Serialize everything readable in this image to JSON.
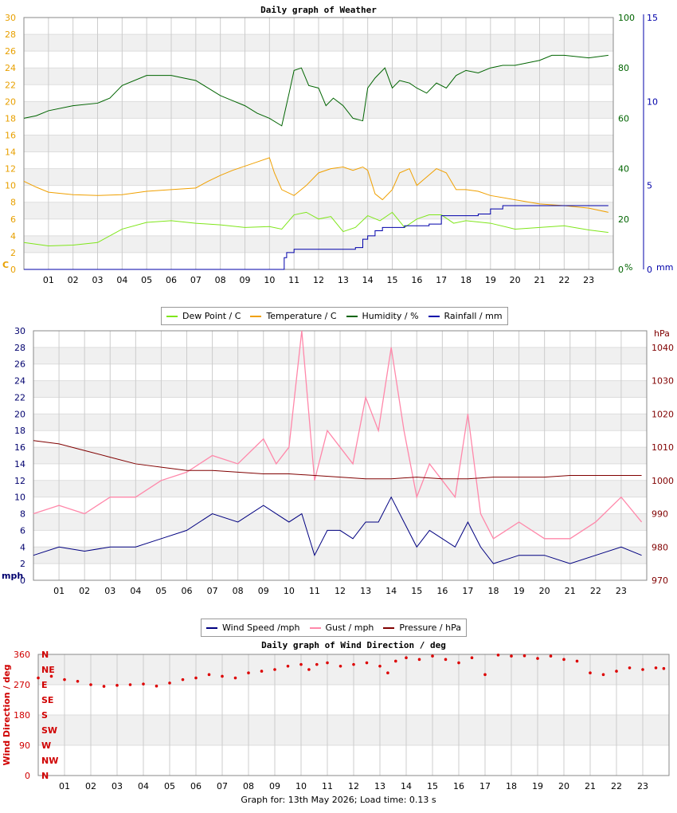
{
  "chart_data": [
    {
      "type": "line",
      "title": "Daily graph of Weather",
      "x_ticks": [
        "01",
        "02",
        "03",
        "04",
        "05",
        "06",
        "07",
        "08",
        "09",
        "10",
        "11",
        "12",
        "13",
        "14",
        "15",
        "16",
        "17",
        "18",
        "19",
        "20",
        "21",
        "22",
        "23"
      ],
      "x_range_hours": [
        0,
        24
      ],
      "grid": true,
      "left_axis": {
        "label": "C",
        "range": [
          0,
          30
        ],
        "ticks": [
          "0",
          "2",
          "4",
          "6",
          "8",
          "10",
          "12",
          "14",
          "16",
          "18",
          "20",
          "22",
          "24",
          "26",
          "28",
          "30"
        ],
        "color": "#e8a000"
      },
      "right_axis_1": {
        "label": "%",
        "range": [
          0,
          100
        ],
        "ticks": [
          "0",
          "20",
          "40",
          "60",
          "80",
          "100"
        ],
        "color": "#006400"
      },
      "right_axis_2": {
        "label": "mm",
        "range": [
          0,
          15
        ],
        "ticks": [
          "0",
          "5",
          "10",
          "15"
        ],
        "color": "#0000aa"
      },
      "legend_position": "bottom",
      "series": [
        {
          "name": "Dew Point / C",
          "color": "#7fe61a",
          "axis": "left",
          "x": [
            0,
            1,
            2,
            3,
            4,
            5,
            6,
            7,
            8,
            9,
            10,
            10.5,
            11,
            11.5,
            12,
            12.5,
            13,
            13.5,
            14,
            14.5,
            15,
            15.5,
            16,
            16.5,
            17,
            17.5,
            18,
            19,
            20,
            21,
            22,
            23,
            23.8
          ],
          "y": [
            3.2,
            2.8,
            2.9,
            3.2,
            4.8,
            5.6,
            5.8,
            5.5,
            5.3,
            5.0,
            5.1,
            4.8,
            6.5,
            6.8,
            6.0,
            6.3,
            4.5,
            5.0,
            6.4,
            5.8,
            6.8,
            5.0,
            6.0,
            6.5,
            6.5,
            5.5,
            5.8,
            5.5,
            4.8,
            5.0,
            5.2,
            4.7,
            4.4
          ]
        },
        {
          "name": "Temperature / C",
          "color": "#f0a000",
          "axis": "left",
          "x": [
            0,
            0.5,
            1,
            2,
            3,
            4,
            5,
            6,
            7,
            7.5,
            8,
            8.5,
            9,
            9.5,
            10,
            10.2,
            10.5,
            11,
            11.5,
            12,
            12.5,
            13,
            13.4,
            13.8,
            14,
            14.3,
            14.6,
            15,
            15.3,
            15.7,
            16,
            16.4,
            16.8,
            17.2,
            17.6,
            18,
            18.5,
            19,
            20,
            21,
            22,
            23,
            23.8
          ],
          "y": [
            10.5,
            9.8,
            9.2,
            8.9,
            8.8,
            8.9,
            9.3,
            9.5,
            9.7,
            10.5,
            11.2,
            11.8,
            12.3,
            12.8,
            13.3,
            11.5,
            9.5,
            8.8,
            10.0,
            11.5,
            12.0,
            12.2,
            11.8,
            12.2,
            11.8,
            9.0,
            8.3,
            9.5,
            11.5,
            12.0,
            10.0,
            11.0,
            12.0,
            11.5,
            9.5,
            9.5,
            9.3,
            8.8,
            8.3,
            7.8,
            7.6,
            7.3,
            6.8
          ]
        },
        {
          "name": "Humidity / %",
          "color": "#006400",
          "axis": "right_1",
          "x": [
            0,
            0.5,
            1,
            2,
            3,
            3.5,
            4,
            5,
            6,
            6.5,
            7,
            7.5,
            8,
            8.5,
            9,
            9.5,
            10,
            10.5,
            10.8,
            11,
            11.3,
            11.6,
            12,
            12.3,
            12.6,
            13,
            13.4,
            13.8,
            14,
            14.3,
            14.7,
            15,
            15.3,
            15.7,
            16,
            16.4,
            16.8,
            17.2,
            17.6,
            18,
            18.5,
            19,
            19.5,
            20,
            20.5,
            21,
            21.5,
            22,
            23,
            23.8
          ],
          "y": [
            60,
            61,
            63,
            65,
            66,
            68,
            73,
            77,
            77,
            76,
            75,
            72,
            69,
            67,
            65,
            62,
            60,
            57,
            70,
            79,
            80,
            73,
            72,
            65,
            68,
            65,
            60,
            59,
            72,
            76,
            80,
            72,
            75,
            74,
            72,
            70,
            74,
            72,
            77,
            79,
            78,
            80,
            81,
            81,
            82,
            83,
            85,
            85,
            84,
            85
          ]
        },
        {
          "name": "Rainfall / mm",
          "color": "#0000aa",
          "axis": "right_2",
          "x": [
            0,
            10.5,
            10.6,
            10.7,
            11,
            11.5,
            12,
            13,
            13.5,
            13.8,
            14,
            14.3,
            14.6,
            15,
            15.5,
            16,
            16.5,
            17,
            17.5,
            18,
            18.5,
            19,
            19.5,
            20,
            21,
            22,
            23,
            23.8
          ],
          "y": [
            0,
            0,
            0.7,
            1.0,
            1.2,
            1.2,
            1.2,
            1.2,
            1.3,
            1.8,
            2.0,
            2.3,
            2.5,
            2.5,
            2.6,
            2.6,
            2.7,
            3.2,
            3.2,
            3.2,
            3.3,
            3.6,
            3.8,
            3.8,
            3.8,
            3.8,
            3.8,
            3.8
          ]
        }
      ]
    },
    {
      "type": "line",
      "title": "",
      "x_ticks": [
        "01",
        "02",
        "03",
        "04",
        "05",
        "06",
        "07",
        "08",
        "09",
        "10",
        "11",
        "12",
        "13",
        "14",
        "15",
        "16",
        "17",
        "18",
        "19",
        "20",
        "21",
        "22",
        "23"
      ],
      "x_range_hours": [
        0,
        24
      ],
      "grid": true,
      "left_axis": {
        "label": "mph",
        "range": [
          0,
          30
        ],
        "ticks": [
          "0",
          "2",
          "4",
          "6",
          "8",
          "10",
          "12",
          "14",
          "16",
          "18",
          "20",
          "22",
          "24",
          "26",
          "28",
          "30"
        ],
        "color": "#00006e"
      },
      "right_axis_1": {
        "label": "hPa",
        "range": [
          970,
          1045
        ],
        "ticks": [
          "970",
          "980",
          "990",
          "1000",
          "1010",
          "1020",
          "1030",
          "1040"
        ],
        "color": "#800000"
      },
      "legend_position": "bottom",
      "series": [
        {
          "name": "Wind Speed /mph",
          "color": "#000080",
          "axis": "left",
          "x": [
            0,
            1,
            2,
            3,
            4,
            5,
            6,
            7,
            8,
            9,
            9.5,
            10,
            10.5,
            11,
            11.5,
            12,
            12.5,
            13,
            13.5,
            14,
            14.5,
            15,
            15.5,
            16,
            16.5,
            17,
            17.5,
            18,
            18.5,
            19,
            20,
            21,
            22,
            23,
            23.8
          ],
          "y": [
            3,
            4,
            3.5,
            4,
            4,
            5,
            6,
            8,
            7,
            9,
            8,
            7,
            8,
            3,
            6,
            6,
            5,
            7,
            7,
            10,
            7,
            4,
            6,
            5,
            4,
            7,
            4,
            2,
            2.5,
            3,
            3,
            2,
            3,
            4,
            3
          ]
        },
        {
          "name": "Gust / mph",
          "color": "#ff88aa",
          "axis": "left",
          "x": [
            0,
            1,
            2,
            3,
            4,
            5,
            6,
            7,
            8,
            9,
            9.5,
            10,
            10.5,
            11,
            11.5,
            12,
            12.5,
            13,
            13.5,
            14,
            14.5,
            15,
            15.5,
            16,
            16.5,
            17,
            17.5,
            18,
            18.5,
            19,
            20,
            21,
            22,
            23,
            23.8
          ],
          "y": [
            8,
            9,
            8,
            10,
            10,
            12,
            13,
            15,
            14,
            17,
            14,
            16,
            30,
            12,
            18,
            16,
            14,
            22,
            18,
            28,
            18,
            10,
            14,
            12,
            10,
            20,
            8,
            5,
            6,
            7,
            5,
            5,
            7,
            10,
            7
          ]
        },
        {
          "name": "Pressure / hPa",
          "color": "#800000",
          "axis": "right_1",
          "x": [
            0,
            1,
            2,
            3,
            4,
            5,
            6,
            7,
            8,
            9,
            10,
            11,
            12,
            13,
            14,
            15,
            16,
            17,
            18,
            19,
            20,
            21,
            22,
            23,
            23.8
          ],
          "y": [
            1012,
            1011,
            1009,
            1007,
            1005,
            1004,
            1003,
            1003,
            1002.5,
            1002,
            1002,
            1001.5,
            1001,
            1000.5,
            1000.5,
            1001,
            1000.5,
            1000.5,
            1001,
            1001,
            1001,
            1001.5,
            1001.5,
            1001.5,
            1001.5
          ]
        }
      ]
    },
    {
      "type": "scatter",
      "title": "Daily graph of Wind Direction / deg",
      "x_ticks": [
        "01",
        "02",
        "03",
        "04",
        "05",
        "06",
        "07",
        "08",
        "09",
        "10",
        "11",
        "12",
        "13",
        "14",
        "15",
        "16",
        "17",
        "18",
        "19",
        "20",
        "21",
        "22",
        "23"
      ],
      "x_range_hours": [
        0,
        24
      ],
      "grid": true,
      "left_axis": {
        "label": "Wind Direction / deg",
        "range": [
          0,
          360
        ],
        "ticks": [
          "0",
          "90",
          "180",
          "270",
          "360"
        ],
        "color": "#d00000"
      },
      "compass_labels": [
        "N",
        "NE",
        "E",
        "SE",
        "S",
        "SW",
        "W",
        "NW",
        "N"
      ],
      "series": [
        {
          "color": "#dd0000",
          "x": [
            0,
            0.5,
            1,
            1.5,
            2,
            2.5,
            3,
            3.5,
            4,
            4.5,
            5,
            5.5,
            6,
            6.5,
            7,
            7.5,
            8,
            8.5,
            9,
            9.5,
            10,
            10.3,
            10.6,
            11,
            11.5,
            12,
            12.5,
            13,
            13.3,
            13.6,
            14,
            14.5,
            15,
            15.5,
            16,
            16.5,
            17,
            17.5,
            18,
            18.5,
            19,
            19.5,
            20,
            20.5,
            21,
            21.5,
            22,
            22.5,
            23,
            23.5,
            23.8
          ],
          "y": [
            290,
            295,
            285,
            280,
            270,
            265,
            268,
            270,
            272,
            266,
            275,
            285,
            290,
            300,
            295,
            290,
            305,
            310,
            315,
            325,
            330,
            315,
            330,
            335,
            325,
            330,
            335,
            325,
            305,
            340,
            350,
            345,
            355,
            345,
            335,
            350,
            300,
            358,
            355,
            356,
            348,
            355,
            345,
            340,
            305,
            300,
            310,
            320,
            315,
            320,
            318
          ]
        }
      ]
    }
  ],
  "legend1": [
    "Dew Point / C",
    "Temperature / C",
    "Humidity / %",
    "Rainfall / mm"
  ],
  "legend2": [
    "Wind Speed /mph",
    "Gust / mph",
    "Pressure / hPa"
  ],
  "footer": "Graph for: 13th May 2026; Load time: 0.13 s"
}
